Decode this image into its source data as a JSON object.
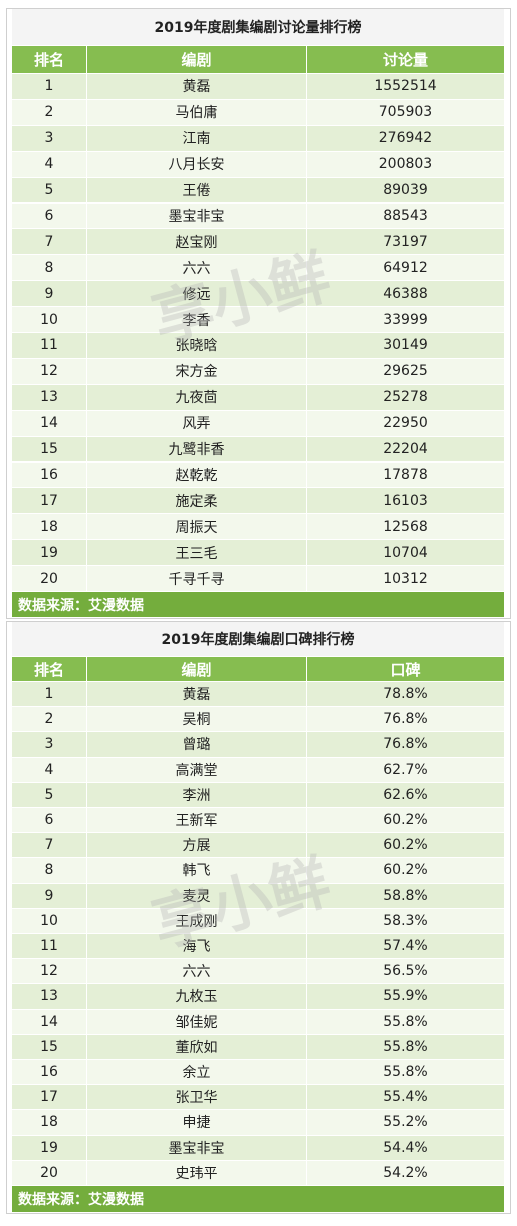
{
  "tables": [
    {
      "title": "2019年度剧集编剧讨论量排行榜",
      "columns": [
        "排名",
        "编剧",
        "讨论量"
      ],
      "rows": [
        [
          1,
          "黄磊",
          1552514
        ],
        [
          2,
          "马伯庸",
          705903
        ],
        [
          3,
          "江南",
          276942
        ],
        [
          4,
          "八月长安",
          200803
        ],
        [
          5,
          "王倦",
          89039
        ],
        [
          6,
          "墨宝非宝",
          88543
        ],
        [
          7,
          "赵宝刚",
          73197
        ],
        [
          8,
          "六六",
          64912
        ],
        [
          9,
          "修远",
          46388
        ],
        [
          10,
          "李香",
          33999
        ],
        [
          11,
          "张晓晗",
          30149
        ],
        [
          12,
          "宋方金",
          29625
        ],
        [
          13,
          "九夜茴",
          25278
        ],
        [
          14,
          "风弄",
          22950
        ],
        [
          15,
          "九鹭非香",
          22204
        ],
        [
          16,
          "赵乾乾",
          17878
        ],
        [
          17,
          "施定柔",
          16103
        ],
        [
          18,
          "周振天",
          12568
        ],
        [
          19,
          "王三毛",
          10704
        ],
        [
          20,
          "千寻千寻",
          10312
        ]
      ],
      "source": "数据来源：艾漫数据"
    },
    {
      "title": "2019年度剧集编剧口碑排行榜",
      "columns": [
        "排名",
        "编剧",
        "口碑"
      ],
      "rows": [
        [
          1,
          "黄磊",
          "78.8%"
        ],
        [
          2,
          "吴桐",
          "76.8%"
        ],
        [
          3,
          "曾璐",
          "76.8%"
        ],
        [
          4,
          "高满堂",
          "62.7%"
        ],
        [
          5,
          "李洲",
          "62.6%"
        ],
        [
          6,
          "王新军",
          "60.2%"
        ],
        [
          7,
          "方展",
          "60.2%"
        ],
        [
          8,
          "韩飞",
          "60.2%"
        ],
        [
          9,
          "麦灵",
          "58.8%"
        ],
        [
          10,
          "王成刚",
          "58.3%"
        ],
        [
          11,
          "海飞",
          "57.4%"
        ],
        [
          12,
          "六六",
          "56.5%"
        ],
        [
          13,
          "九枚玉",
          "55.9%"
        ],
        [
          14,
          "邹佳妮",
          "55.8%"
        ],
        [
          15,
          "董欣如",
          "55.8%"
        ],
        [
          16,
          "余立",
          "55.8%"
        ],
        [
          17,
          "张卫华",
          "55.4%"
        ],
        [
          18,
          "申捷",
          "55.2%"
        ],
        [
          19,
          "墨宝非宝",
          "54.4%"
        ],
        [
          20,
          "史玮平",
          "54.2%"
        ]
      ],
      "source": "数据来源：艾漫数据"
    }
  ],
  "watermark": "享小鲜"
}
